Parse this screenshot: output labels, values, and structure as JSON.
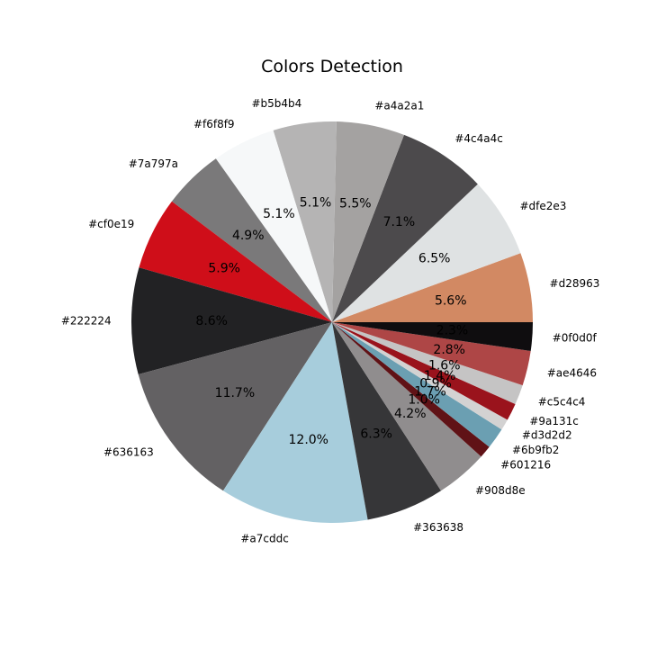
{
  "chart_data": {
    "type": "pie",
    "title": "Colors Detection",
    "start_angle_deg": 0,
    "direction": "counterclockwise",
    "slices": [
      {
        "label": "#d28963",
        "percent": 5.6,
        "percent_label": "5.6%",
        "color": "#d28963"
      },
      {
        "label": "#dfe2e3",
        "percent": 6.5,
        "percent_label": "6.5%",
        "color": "#dfe2e3"
      },
      {
        "label": "#4c4a4c",
        "percent": 7.1,
        "percent_label": "7.1%",
        "color": "#4c4a4c"
      },
      {
        "label": "#a4a2a1",
        "percent": 5.5,
        "percent_label": "5.5%",
        "color": "#a4a2a1"
      },
      {
        "label": "#b5b4b4",
        "percent": 5.1,
        "percent_label": "5.1%",
        "color": "#b5b4b4"
      },
      {
        "label": "#f6f8f9",
        "percent": 5.1,
        "percent_label": "5.1%",
        "color": "#f6f8f9"
      },
      {
        "label": "#7a797a",
        "percent": 4.9,
        "percent_label": "4.9%",
        "color": "#7a797a"
      },
      {
        "label": "#cf0e19",
        "percent": 5.9,
        "percent_label": "5.9%",
        "color": "#cf0e19"
      },
      {
        "label": "#222224",
        "percent": 8.6,
        "percent_label": "8.6%",
        "color": "#222224"
      },
      {
        "label": "#636163",
        "percent": 11.7,
        "percent_label": "11.7%",
        "color": "#636163"
      },
      {
        "label": "#a7cddc",
        "percent": 12.0,
        "percent_label": "12.0%",
        "color": "#a7cddc"
      },
      {
        "label": "#363638",
        "percent": 6.3,
        "percent_label": "6.3%",
        "color": "#363638"
      },
      {
        "label": "#908d8e",
        "percent": 4.2,
        "percent_label": "4.2%",
        "color": "#908d8e"
      },
      {
        "label": "#601216",
        "percent": 1.0,
        "percent_label": "1.0%",
        "color": "#601216"
      },
      {
        "label": "#6b9fb2",
        "percent": 1.7,
        "percent_label": "1.7%",
        "color": "#6b9fb2"
      },
      {
        "label": "#d3d2d2",
        "percent": 0.9,
        "percent_label": "0.9%",
        "color": "#d3d2d2"
      },
      {
        "label": "#9a131c",
        "percent": 1.4,
        "percent_label": "1.4%",
        "color": "#9a131c"
      },
      {
        "label": "#c5c4c4",
        "percent": 1.6,
        "percent_label": "1.6%",
        "color": "#c5c4c4"
      },
      {
        "label": "#ae4646",
        "percent": 2.8,
        "percent_label": "2.8%",
        "color": "#ae4646"
      },
      {
        "label": "#0f0d0f",
        "percent": 2.3,
        "percent_label": "2.3%",
        "color": "#0f0d0f"
      }
    ]
  }
}
